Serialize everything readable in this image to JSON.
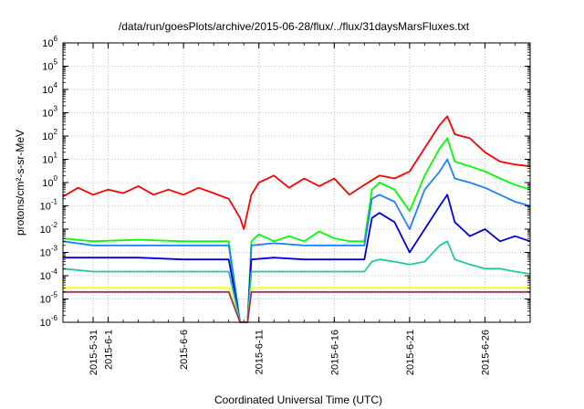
{
  "chart_data": {
    "type": "line",
    "title": "/data/run/goesPlots/archive/2015-06-28/flux/../flux/31daysMarsFluxes.txt",
    "xlabel": "Coordinated Universal Time (UTC)",
    "ylabel": "protons/cm²-s-sr-MeV",
    "ylim": [
      1e-06,
      1000000.0
    ],
    "yscale": "log",
    "xlim": [
      "2015-05-29",
      "2015-06-29"
    ],
    "x_tick_labels": [
      {
        "date": "2015-05-31",
        "label": "2015-5-31"
      },
      {
        "date": "2015-06-01",
        "label": "2015-6-1"
      },
      {
        "date": "2015-06-06",
        "label": "2015-6-6"
      },
      {
        "date": "2015-06-11",
        "label": "2015-6-11"
      },
      {
        "date": "2015-06-16",
        "label": "2015-6-16"
      },
      {
        "date": "2015-06-21",
        "label": "2015-6-21"
      },
      {
        "date": "2015-06-26",
        "label": "2015-6-26"
      }
    ],
    "y_tick_labels": [
      {
        "value": 1e-06,
        "base": "10",
        "exp": "-6"
      },
      {
        "value": 1e-05,
        "base": "10",
        "exp": "-5"
      },
      {
        "value": 0.0001,
        "base": "10",
        "exp": "-4"
      },
      {
        "value": 0.001,
        "base": "10",
        "exp": "-3"
      },
      {
        "value": 0.01,
        "base": "10",
        "exp": "-2"
      },
      {
        "value": 0.1,
        "base": "10",
        "exp": "-1"
      },
      {
        "value": 1,
        "base": "10",
        "exp": "0"
      },
      {
        "value": 10,
        "base": "10",
        "exp": "1"
      },
      {
        "value": 100,
        "base": "10",
        "exp": "2"
      },
      {
        "value": 1000,
        "base": "10",
        "exp": "3"
      },
      {
        "value": 10000,
        "base": "10",
        "exp": "4"
      },
      {
        "value": 100000,
        "base": "10",
        "exp": "5"
      },
      {
        "value": 1000000,
        "base": "10",
        "exp": "6"
      }
    ],
    "grid": true,
    "series": [
      {
        "color": "#ff0000",
        "points": [
          [
            "2015-05-29",
            0.25
          ],
          [
            "2015-05-30",
            0.6
          ],
          [
            "2015-05-31",
            0.3
          ],
          [
            "2015-06-01",
            0.5
          ],
          [
            "2015-06-02",
            0.35
          ],
          [
            "2015-06-03",
            0.7
          ],
          [
            "2015-06-04",
            0.3
          ],
          [
            "2015-06-05",
            0.5
          ],
          [
            "2015-06-06",
            0.3
          ],
          [
            "2015-06-07",
            0.6
          ],
          [
            "2015-06-08",
            0.35
          ],
          [
            "2015-06-09",
            0.2
          ],
          [
            "2015-06-09T18:00",
            0.03
          ],
          [
            "2015-06-10",
            0.01
          ],
          [
            "2015-06-10T12:00",
            0.3
          ],
          [
            "2015-06-11",
            1.0
          ],
          [
            "2015-06-12",
            2.0
          ],
          [
            "2015-06-13",
            0.6
          ],
          [
            "2015-06-14",
            1.5
          ],
          [
            "2015-06-15",
            0.7
          ],
          [
            "2015-06-16",
            1.5
          ],
          [
            "2015-06-17",
            0.3
          ],
          [
            "2015-06-18",
            0.8
          ],
          [
            "2015-06-19",
            2.0
          ],
          [
            "2015-06-20",
            1.5
          ],
          [
            "2015-06-21",
            3.0
          ],
          [
            "2015-06-22",
            30
          ],
          [
            "2015-06-23",
            300
          ],
          [
            "2015-06-23T12:00",
            700
          ],
          [
            "2015-06-24",
            120
          ],
          [
            "2015-06-25",
            80
          ],
          [
            "2015-06-26",
            20
          ],
          [
            "2015-06-27",
            8
          ],
          [
            "2015-06-28",
            6
          ],
          [
            "2015-06-29",
            5
          ]
        ]
      },
      {
        "color": "#00ff00",
        "points": [
          [
            "2015-05-29",
            0.004
          ],
          [
            "2015-05-31",
            0.003
          ],
          [
            "2015-06-03",
            0.0035
          ],
          [
            "2015-06-06",
            0.003
          ],
          [
            "2015-06-09",
            0.003
          ],
          [
            "2015-06-09T18:00",
            1e-06
          ],
          [
            "2015-06-10T06:00",
            1e-06
          ],
          [
            "2015-06-10T12:00",
            0.003
          ],
          [
            "2015-06-11",
            0.006
          ],
          [
            "2015-06-12",
            0.003
          ],
          [
            "2015-06-13",
            0.005
          ],
          [
            "2015-06-14",
            0.003
          ],
          [
            "2015-06-15",
            0.008
          ],
          [
            "2015-06-16",
            0.004
          ],
          [
            "2015-06-17",
            0.003
          ],
          [
            "2015-06-18",
            0.003
          ],
          [
            "2015-06-18T12:00",
            0.5
          ],
          [
            "2015-06-19",
            1.0
          ],
          [
            "2015-06-20",
            0.5
          ],
          [
            "2015-06-21",
            0.06
          ],
          [
            "2015-06-22",
            2.0
          ],
          [
            "2015-06-23",
            30
          ],
          [
            "2015-06-23T12:00",
            80
          ],
          [
            "2015-06-24",
            8
          ],
          [
            "2015-06-25",
            5
          ],
          [
            "2015-06-26",
            3
          ],
          [
            "2015-06-27",
            1.5
          ],
          [
            "2015-06-28",
            0.8
          ],
          [
            "2015-06-29",
            0.5
          ]
        ]
      },
      {
        "color": "#1f7fff",
        "points": [
          [
            "2015-05-29",
            0.003
          ],
          [
            "2015-05-31",
            0.002
          ],
          [
            "2015-06-03",
            0.002
          ],
          [
            "2015-06-06",
            0.002
          ],
          [
            "2015-06-09",
            0.002
          ],
          [
            "2015-06-09T18:00",
            1e-06
          ],
          [
            "2015-06-10T06:00",
            1e-06
          ],
          [
            "2015-06-10T12:00",
            0.002
          ],
          [
            "2015-06-12",
            0.0025
          ],
          [
            "2015-06-14",
            0.002
          ],
          [
            "2015-06-16",
            0.002
          ],
          [
            "2015-06-18",
            0.002
          ],
          [
            "2015-06-18T12:00",
            0.2
          ],
          [
            "2015-06-19",
            0.3
          ],
          [
            "2015-06-20",
            0.15
          ],
          [
            "2015-06-21",
            0.01
          ],
          [
            "2015-06-22",
            0.5
          ],
          [
            "2015-06-23",
            3
          ],
          [
            "2015-06-23T12:00",
            10
          ],
          [
            "2015-06-24",
            1.5
          ],
          [
            "2015-06-25",
            1.0
          ],
          [
            "2015-06-26",
            0.6
          ],
          [
            "2015-06-27",
            0.3
          ],
          [
            "2015-06-28",
            0.15
          ],
          [
            "2015-06-29",
            0.1
          ]
        ]
      },
      {
        "color": "#0000dd",
        "points": [
          [
            "2015-05-29",
            0.0006
          ],
          [
            "2015-05-31",
            0.0006
          ],
          [
            "2015-06-03",
            0.0006
          ],
          [
            "2015-06-06",
            0.0005
          ],
          [
            "2015-06-09",
            0.0005
          ],
          [
            "2015-06-09T18:00",
            1e-06
          ],
          [
            "2015-06-10T06:00",
            1e-06
          ],
          [
            "2015-06-10T12:00",
            0.0005
          ],
          [
            "2015-06-12",
            0.0006
          ],
          [
            "2015-06-14",
            0.0005
          ],
          [
            "2015-06-16",
            0.0005
          ],
          [
            "2015-06-18",
            0.0005
          ],
          [
            "2015-06-18T12:00",
            0.03
          ],
          [
            "2015-06-19",
            0.05
          ],
          [
            "2015-06-20",
            0.02
          ],
          [
            "2015-06-21",
            0.001
          ],
          [
            "2015-06-22",
            0.01
          ],
          [
            "2015-06-23",
            0.1
          ],
          [
            "2015-06-23T12:00",
            0.3
          ],
          [
            "2015-06-24",
            0.02
          ],
          [
            "2015-06-25",
            0.005
          ],
          [
            "2015-06-26",
            0.01
          ],
          [
            "2015-06-27",
            0.003
          ],
          [
            "2015-06-28",
            0.005
          ],
          [
            "2015-06-29",
            0.003
          ]
        ]
      },
      {
        "color": "#20c8a0",
        "points": [
          [
            "2015-05-29",
            0.0002
          ],
          [
            "2015-05-31",
            0.00015
          ],
          [
            "2015-06-03",
            0.00015
          ],
          [
            "2015-06-06",
            0.00015
          ],
          [
            "2015-06-09",
            0.00015
          ],
          [
            "2015-06-09T18:00",
            1e-06
          ],
          [
            "2015-06-10T06:00",
            1e-06
          ],
          [
            "2015-06-10T12:00",
            0.00015
          ],
          [
            "2015-06-12",
            0.00015
          ],
          [
            "2015-06-14",
            0.00015
          ],
          [
            "2015-06-16",
            0.00015
          ],
          [
            "2015-06-18",
            0.00015
          ],
          [
            "2015-06-18T12:00",
            0.0004
          ],
          [
            "2015-06-19",
            0.0005
          ],
          [
            "2015-06-20",
            0.0004
          ],
          [
            "2015-06-21",
            0.0003
          ],
          [
            "2015-06-22",
            0.0004
          ],
          [
            "2015-06-23",
            0.002
          ],
          [
            "2015-06-23T12:00",
            0.003
          ],
          [
            "2015-06-24",
            0.0005
          ],
          [
            "2015-06-25",
            0.0003
          ],
          [
            "2015-06-26",
            0.0002
          ],
          [
            "2015-06-27",
            0.0002
          ],
          [
            "2015-06-28",
            0.00015
          ],
          [
            "2015-06-29",
            0.00012
          ]
        ]
      },
      {
        "color": "#ffff00",
        "points": [
          [
            "2015-05-29",
            3e-05
          ],
          [
            "2015-06-01",
            3e-05
          ],
          [
            "2015-06-05",
            3e-05
          ],
          [
            "2015-06-09",
            3e-05
          ],
          [
            "2015-06-09T18:00",
            1e-06
          ],
          [
            "2015-06-10T06:00",
            1e-06
          ],
          [
            "2015-06-10T12:00",
            3e-05
          ],
          [
            "2015-06-14",
            3e-05
          ],
          [
            "2015-06-18",
            3e-05
          ],
          [
            "2015-06-21",
            3e-05
          ],
          [
            "2015-06-24",
            3e-05
          ],
          [
            "2015-06-29",
            3e-05
          ]
        ]
      },
      {
        "color": "#993366",
        "points": [
          [
            "2015-05-29",
            2e-05
          ],
          [
            "2015-06-01",
            2e-05
          ],
          [
            "2015-06-05",
            2e-05
          ],
          [
            "2015-06-09",
            2e-05
          ],
          [
            "2015-06-09T18:00",
            1e-06
          ],
          [
            "2015-06-10T06:00",
            1e-06
          ],
          [
            "2015-06-10T12:00",
            2e-05
          ],
          [
            "2015-06-14",
            2e-05
          ],
          [
            "2015-06-18",
            2e-05
          ],
          [
            "2015-06-21",
            2e-05
          ],
          [
            "2015-06-24",
            2e-05
          ],
          [
            "2015-06-29",
            2e-05
          ]
        ]
      }
    ]
  }
}
